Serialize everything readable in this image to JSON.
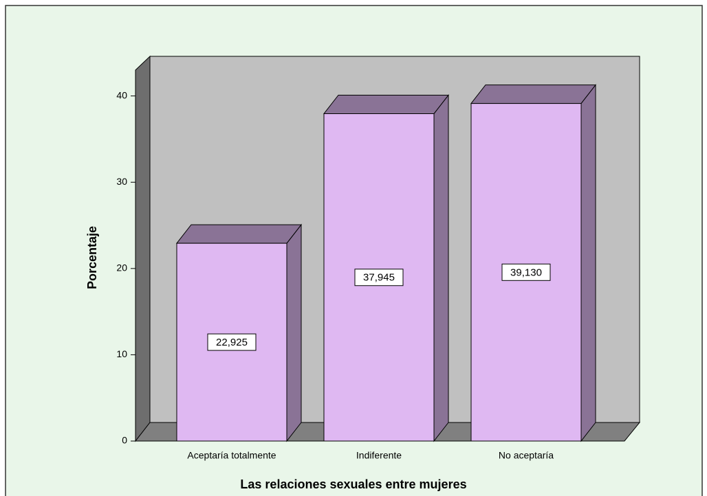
{
  "chart_data": {
    "type": "bar3d",
    "categories": [
      "Aceptaría totalmente",
      "Indiferente",
      "No aceptaría"
    ],
    "values": [
      22.925,
      37.945,
      39.13
    ],
    "value_labels": [
      "22,925",
      "37,945",
      "39,130"
    ],
    "color": "#dfb8f2",
    "xlabel": "Las relaciones sexuales entre mujeres",
    "ylabel": "Porcentaje",
    "ylim": [
      0,
      43
    ],
    "yticks": [
      0,
      10,
      20,
      30,
      40
    ]
  }
}
